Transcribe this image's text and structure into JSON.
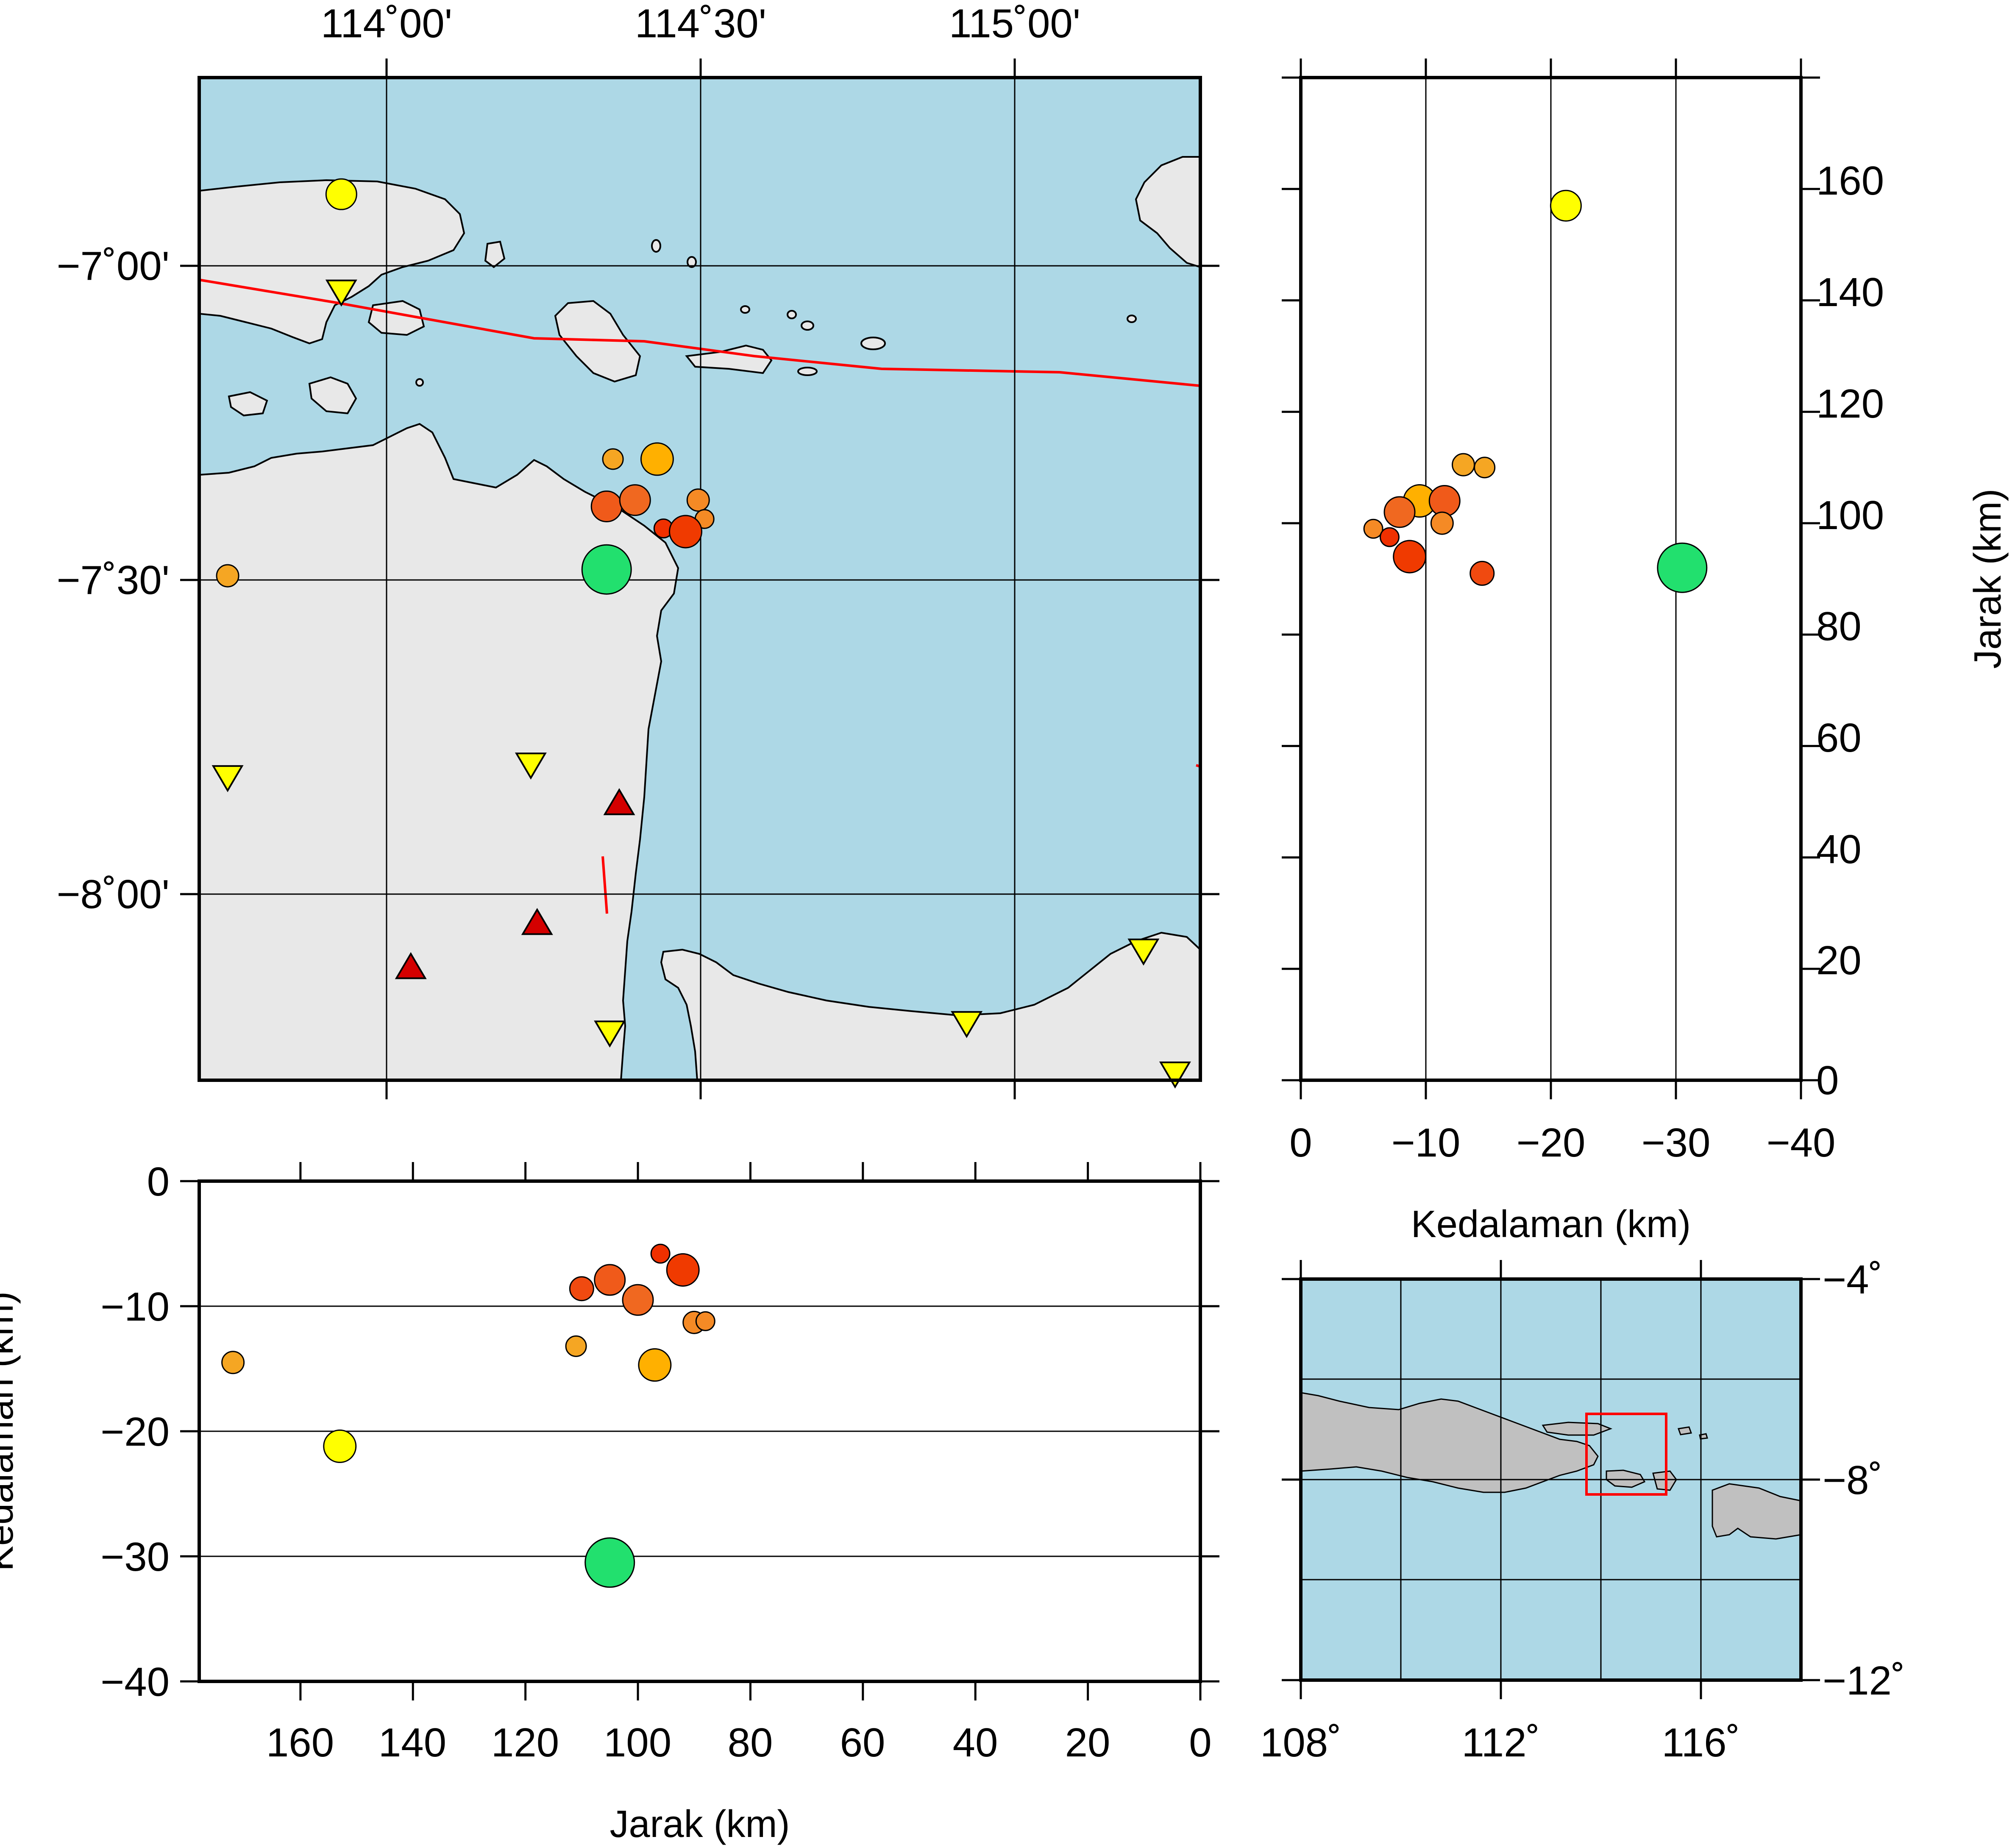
{
  "colors": {
    "sea": "#add8e6",
    "land_main": "#e8e8e8",
    "land_overview": "#c0c0c0",
    "fault": "#ff0000",
    "station_up": "#d40000",
    "station_down": "#ffff00",
    "inset_box": "#ff0000"
  },
  "map": {
    "top_labels": [
      "114˚00'",
      "114˚30'",
      "115˚00'"
    ],
    "left_labels": [
      "−7˚00'",
      "−7˚30'",
      "−8˚00'"
    ],
    "lon_range": [
      113.695,
      115.28
    ],
    "lat_range": [
      -8.295,
      -6.705
    ],
    "events": [
      {
        "lon": 113.92,
        "lat": -6.89,
        "depth": 21,
        "color": "#ffff00",
        "r": 36
      },
      {
        "lon": 113.74,
        "lat": -7.495,
        "depth": 14.5,
        "color": "#f5a623",
        "r": 26
      },
      {
        "lon": 114.35,
        "lat": -7.31,
        "depth": 13.2,
        "color": "#f5a623",
        "r": 24
      },
      {
        "lon": 114.42,
        "lat": -7.31,
        "depth": 14.7,
        "color": "#ffb000",
        "r": 38
      },
      {
        "lon": 114.34,
        "lat": -7.385,
        "depth": 7.9,
        "color": "#f05a1a",
        "r": 36
      },
      {
        "lon": 114.385,
        "lat": -7.375,
        "depth": 9.5,
        "color": "#f06820",
        "r": 36
      },
      {
        "lon": 114.485,
        "lat": -7.375,
        "depth": 11.3,
        "color": "#f58a25",
        "r": 26
      },
      {
        "lon": 114.495,
        "lat": -7.405,
        "depth": 11.3,
        "color": "#f58a25",
        "r": 22
      },
      {
        "lon": 114.43,
        "lat": -7.42,
        "depth": 5.8,
        "color": "#f03000",
        "r": 22
      },
      {
        "lon": 114.465,
        "lat": -7.425,
        "depth": 7.1,
        "color": "#f03a00",
        "r": 38
      },
      {
        "lon": 114.345,
        "lat": -7.47,
        "depth": 8.7,
        "color": "#f04a10",
        "r": 28
      },
      {
        "lon": 114.34,
        "lat": -7.485,
        "depth": 30.5,
        "color": "#22e06e",
        "r": 58
      }
    ],
    "stations_up": [
      {
        "lon": 114.36,
        "lat": -7.855
      },
      {
        "lon": 114.23,
        "lat": -8.045
      },
      {
        "lon": 114.03,
        "lat": -8.115
      }
    ],
    "stations_down": [
      {
        "lon": 113.92,
        "lat": -7.045
      },
      {
        "lon": 113.74,
        "lat": -7.815
      },
      {
        "lon": 114.22,
        "lat": -7.795
      },
      {
        "lon": 114.345,
        "lat": -8.22
      },
      {
        "lon": 114.91,
        "lat": -8.205
      },
      {
        "lon": 115.19,
        "lat": -8.09
      },
      {
        "lon": 115.24,
        "lat": -8.285
      }
    ]
  },
  "cross_lat": {
    "y_labels": [
      "160",
      "140",
      "120",
      "100",
      "80",
      "60",
      "40",
      "20",
      "0"
    ],
    "x_labels": [
      "0",
      "−10",
      "−20",
      "−30",
      "−40"
    ],
    "xlabel": "Kedalaman (km)",
    "ylabel": "Jarak (km)",
    "xlim": [
      0,
      -40
    ],
    "ylim": [
      0,
      180
    ]
  },
  "cross_lon": {
    "y_labels": [
      "0",
      "−10",
      "−20",
      "−30",
      "−40"
    ],
    "x_labels": [
      "160",
      "140",
      "120",
      "100",
      "80",
      "60",
      "40",
      "20",
      "0"
    ],
    "xlabel": "Jarak (km)",
    "ylabel": "Kedalaman (km)",
    "xlim": [
      178,
      0
    ],
    "ylim": [
      0,
      -40
    ]
  },
  "overview": {
    "x_labels": [
      "108˚",
      "112˚",
      "116˚"
    ],
    "y_labels": [
      "−4˚",
      "−8˚",
      "−12˚"
    ],
    "lon_range": [
      108,
      118
    ],
    "lat_range": [
      -12,
      -4
    ],
    "box": {
      "lon_min": 113.7,
      "lon_max": 115.3,
      "lat_min": -8.3,
      "lat_max": -6.7
    }
  },
  "chart_data": {
    "type": "scatter",
    "title": "",
    "x_name": "Jarak (km)",
    "y_name": "Kedalaman (km)",
    "cross_section_lon": [
      {
        "x": 172,
        "y": -14.5
      },
      {
        "x": 153,
        "y": -21.2
      },
      {
        "x": 111,
        "y": -13.2
      },
      {
        "x": 110,
        "y": -8.6
      },
      {
        "x": 105,
        "y": -7.9
      },
      {
        "x": 105,
        "y": -30.5
      },
      {
        "x": 100,
        "y": -9.5
      },
      {
        "x": 97,
        "y": -14.7
      },
      {
        "x": 96,
        "y": -5.8
      },
      {
        "x": 92,
        "y": -7.1
      },
      {
        "x": 90,
        "y": -11.3
      },
      {
        "x": 88,
        "y": -11.2
      }
    ],
    "cross_section_lat": [
      {
        "depth": -21.2,
        "dist": 157
      },
      {
        "depth": -13.0,
        "dist": 110.5
      },
      {
        "depth": -14.7,
        "dist": 110
      },
      {
        "depth": -9.5,
        "dist": 104
      },
      {
        "depth": -11.5,
        "dist": 104
      },
      {
        "depth": -7.9,
        "dist": 102
      },
      {
        "depth": -11.3,
        "dist": 100
      },
      {
        "depth": -5.8,
        "dist": 99
      },
      {
        "depth": -7.1,
        "dist": 97.5
      },
      {
        "depth": -8.7,
        "dist": 94
      },
      {
        "depth": -14.5,
        "dist": 91
      },
      {
        "depth": -30.5,
        "dist": 92
      }
    ]
  }
}
